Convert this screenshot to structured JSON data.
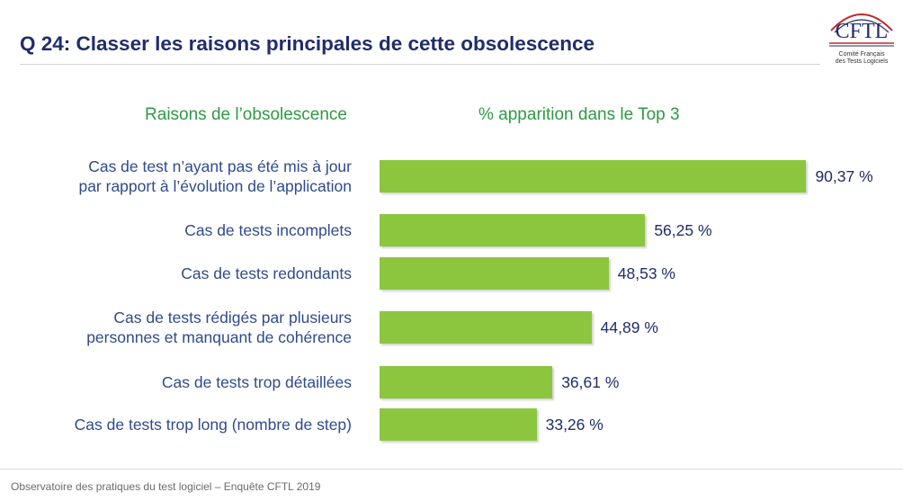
{
  "header": {
    "title": "Q 24: Classer les raisons principales de cette obsolescence",
    "logo_text": "CFTL",
    "logo_subtitle": [
      "Comité Français",
      "des Tests Logiciels"
    ]
  },
  "colors": {
    "title": "#1f2d6b",
    "header_green": "#2e9a44",
    "bar": "#8cc63f",
    "category_text": "#2f4b8c"
  },
  "chart_data": {
    "type": "bar",
    "orientation": "horizontal",
    "column_headers": {
      "categories": "Raisons de l’obsolescence",
      "values": "% apparition dans le Top 3"
    },
    "categories": [
      [
        "Cas de test n’ayant pas été mis à jour",
        "par rapport à l’évolution de l’application"
      ],
      [
        "Cas de tests incomplets"
      ],
      [
        "Cas de tests redondants"
      ],
      [
        "Cas de tests rédigés par plusieurs",
        "personnes et manquant de cohérence"
      ],
      [
        "Cas de tests trop détaillées"
      ],
      [
        "Cas de tests trop long (nombre de step)"
      ]
    ],
    "values": [
      90.37,
      56.25,
      48.53,
      44.89,
      36.61,
      33.26
    ],
    "value_labels": [
      "90,37 %",
      "56,25 %",
      "48,53 %",
      "44,89 %",
      "36,61 %",
      "33,26 %"
    ],
    "xlim": [
      0,
      100
    ],
    "grid": false,
    "legend": "none"
  },
  "footer": {
    "text": "Observatoire des pratiques du test logiciel – Enquête CFTL 2019"
  }
}
